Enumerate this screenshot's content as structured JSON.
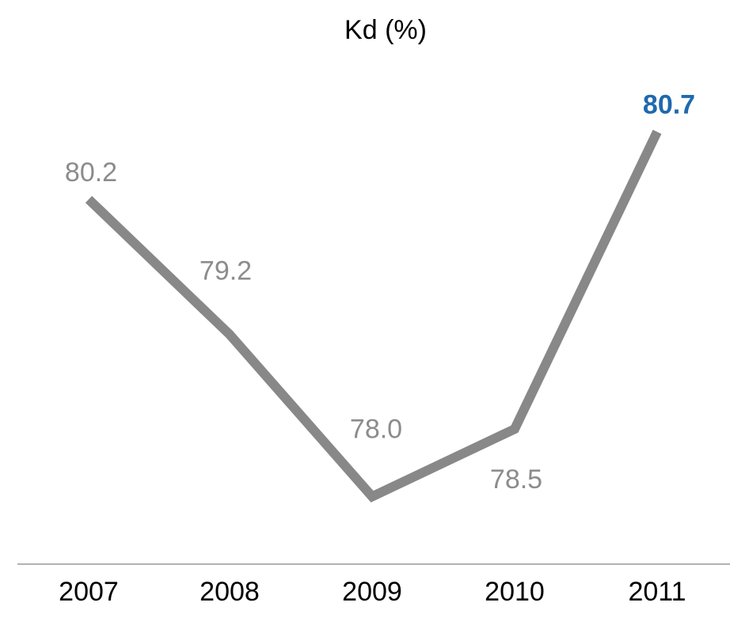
{
  "chart_data": {
    "type": "line",
    "title": "Kd (%)",
    "categories": [
      "2007",
      "2008",
      "2009",
      "2010",
      "2011"
    ],
    "values": [
      80.2,
      79.2,
      78.0,
      78.5,
      80.7
    ],
    "value_labels": [
      "80.2",
      "79.2",
      "78.0",
      "78.5",
      "80.7"
    ],
    "value_label_colors": [
      "#8c8c8c",
      "#8c8c8c",
      "#8c8c8c",
      "#8c8c8c",
      "#1f69ad"
    ],
    "color": "#888888",
    "ylim": [
      77.5,
      81.5
    ]
  }
}
